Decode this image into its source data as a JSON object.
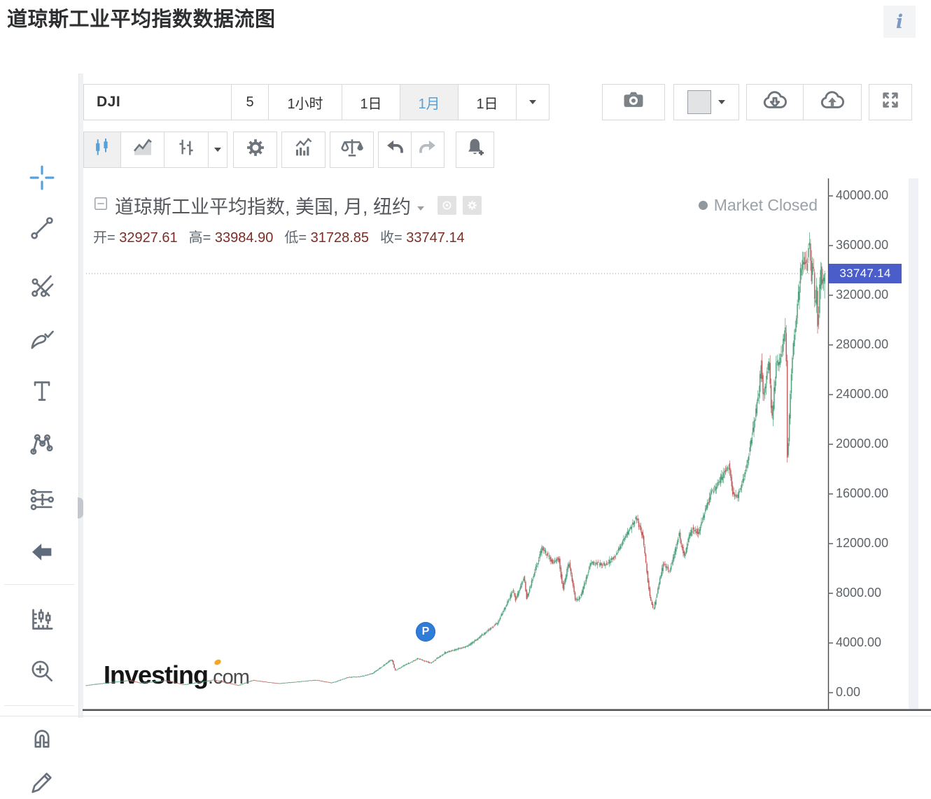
{
  "page_title": "道琼斯工业平均指数数据流图",
  "info_button": {
    "icon": "info-icon",
    "label": "i"
  },
  "drawing_toolbar": {
    "selected_tool": "crosshair",
    "tools": [
      "crosshair",
      "trend-line",
      "gann-fib-lines",
      "brush",
      "text",
      "xabcd-pattern",
      "projection-lines",
      "back-arrow",
      "measure-forecast",
      "zoom-in",
      "magnet",
      "pencil"
    ]
  },
  "toolbar": {
    "symbol": "DJI",
    "intervals": [
      {
        "label": "5",
        "selected": false
      },
      {
        "label": "1小时",
        "selected": false
      },
      {
        "label": "1日",
        "selected": false
      },
      {
        "label": "1月",
        "selected": true
      },
      {
        "label": "1日",
        "selected": false
      }
    ],
    "right_icons": [
      "camera",
      "swatch-dropdown",
      "cloud-download",
      "cloud-upload",
      "fullscreen"
    ]
  },
  "chart_toolbar_icons": [
    "candlestick-style",
    "area-style",
    "ohlc-style",
    "style-dropdown",
    "settings-gear",
    "indicators",
    "compare-scales",
    "undo",
    "redo",
    "alert-bell-add"
  ],
  "legend": {
    "title": "道琼斯工业平均指数, 美国, 月, 纽约",
    "ohlc": [
      {
        "label": "开=",
        "value": "32927.61"
      },
      {
        "label": "高=",
        "value": "33984.90"
      },
      {
        "label": "低=",
        "value": "31728.85"
      },
      {
        "label": "收=",
        "value": "33747.14"
      }
    ],
    "market_status": "Market Closed"
  },
  "watermark": {
    "brand": "Investing",
    "suffix": ".com"
  },
  "chart_data": {
    "type": "candlestick",
    "title": "道琼斯工业平均指数, 美国, 月, 纽约",
    "symbol": "DJI",
    "timeframe": "1月",
    "last_bar": {
      "open": 32927.61,
      "high": 33984.9,
      "low": 31728.85,
      "close": 33747.14
    },
    "current_price": "33747.14",
    "y_ticks": [
      {
        "label": "40000.00",
        "value": 40000
      },
      {
        "label": "36000.00",
        "value": 36000
      },
      {
        "label": "32000.00",
        "value": 32000
      },
      {
        "label": "28000.00",
        "value": 28000
      },
      {
        "label": "24000.00",
        "value": 24000
      },
      {
        "label": "20000.00",
        "value": 20000
      },
      {
        "label": "16000.00",
        "value": 16000
      },
      {
        "label": "12000.00",
        "value": 12000
      },
      {
        "label": "8000.00",
        "value": 8000
      },
      {
        "label": "4000.00",
        "value": 4000
      },
      {
        "label": "0.00",
        "value": 0
      }
    ],
    "ylim": [
      -1408,
      41408
    ],
    "xlim_years": [
      1962.3,
      2023.5
    ],
    "anchors_year_value": [
      [
        1962.3,
        580
      ],
      [
        1963.0,
        680
      ],
      [
        1965.9,
        990
      ],
      [
        1966.8,
        790
      ],
      [
        1968.9,
        975
      ],
      [
        1970.4,
        650
      ],
      [
        1972.9,
        1040
      ],
      [
        1974.9,
        590
      ],
      [
        1976.1,
        1000
      ],
      [
        1978.2,
        745
      ],
      [
        1981.3,
        1020
      ],
      [
        1982.6,
        790
      ],
      [
        1984.0,
        1250
      ],
      [
        1985.0,
        1300
      ],
      [
        1986.0,
        1550
      ],
      [
        1987.6,
        2700
      ],
      [
        1987.85,
        1790
      ],
      [
        1989.7,
        2750
      ],
      [
        1990.8,
        2390
      ],
      [
        1992.0,
        3230
      ],
      [
        1993.9,
        3780
      ],
      [
        1996.3,
        5600
      ],
      [
        1997.6,
        8250
      ],
      [
        1997.8,
        7450
      ],
      [
        1998.5,
        9330
      ],
      [
        1998.7,
        7550
      ],
      [
        2000.0,
        11720
      ],
      [
        2000.9,
        10450
      ],
      [
        2001.35,
        10900
      ],
      [
        2001.7,
        8300
      ],
      [
        2002.2,
        10500
      ],
      [
        2002.75,
        7350
      ],
      [
        2003.2,
        7800
      ],
      [
        2004.0,
        10450
      ],
      [
        2005.3,
        10300
      ],
      [
        2006.0,
        11000
      ],
      [
        2007.75,
        14050
      ],
      [
        2008.3,
        12600
      ],
      [
        2008.85,
        7900
      ],
      [
        2009.17,
        6600
      ],
      [
        2010.0,
        10450
      ],
      [
        2010.5,
        9750
      ],
      [
        2011.3,
        12750
      ],
      [
        2011.75,
        10800
      ],
      [
        2012.0,
        12300
      ],
      [
        2012.4,
        13200
      ],
      [
        2012.9,
        12900
      ],
      [
        2013.9,
        16000
      ],
      [
        2014.7,
        17200
      ],
      [
        2015.4,
        18250
      ],
      [
        2015.7,
        16100
      ],
      [
        2016.1,
        15700
      ],
      [
        2016.9,
        18300
      ],
      [
        2017.9,
        24300
      ],
      [
        2018.05,
        26600
      ],
      [
        2018.25,
        23850
      ],
      [
        2018.7,
        26700
      ],
      [
        2018.95,
        21800
      ],
      [
        2019.3,
        26500
      ],
      [
        2019.6,
        26600
      ],
      [
        2020.1,
        29500
      ],
      [
        2020.22,
        18600
      ],
      [
        2020.6,
        27000
      ],
      [
        2020.9,
        29600
      ],
      [
        2021.3,
        33800
      ],
      [
        2021.6,
        35000
      ],
      [
        2021.85,
        34000
      ],
      [
        2022.0,
        36900
      ],
      [
        2022.2,
        33200
      ],
      [
        2022.35,
        35000
      ],
      [
        2022.5,
        30800
      ],
      [
        2022.65,
        32800
      ],
      [
        2022.73,
        28800
      ],
      [
        2022.95,
        34500
      ],
      [
        2023.05,
        33100
      ],
      [
        2023.25,
        33747.14
      ]
    ],
    "marker": {
      "label": "P",
      "year": 1990.3,
      "price": 4900
    },
    "colors": {
      "up": "#4da17c",
      "down": "#c0605f",
      "price_line": "#8090d0",
      "price_label_bg": "#4a5dc8"
    }
  }
}
